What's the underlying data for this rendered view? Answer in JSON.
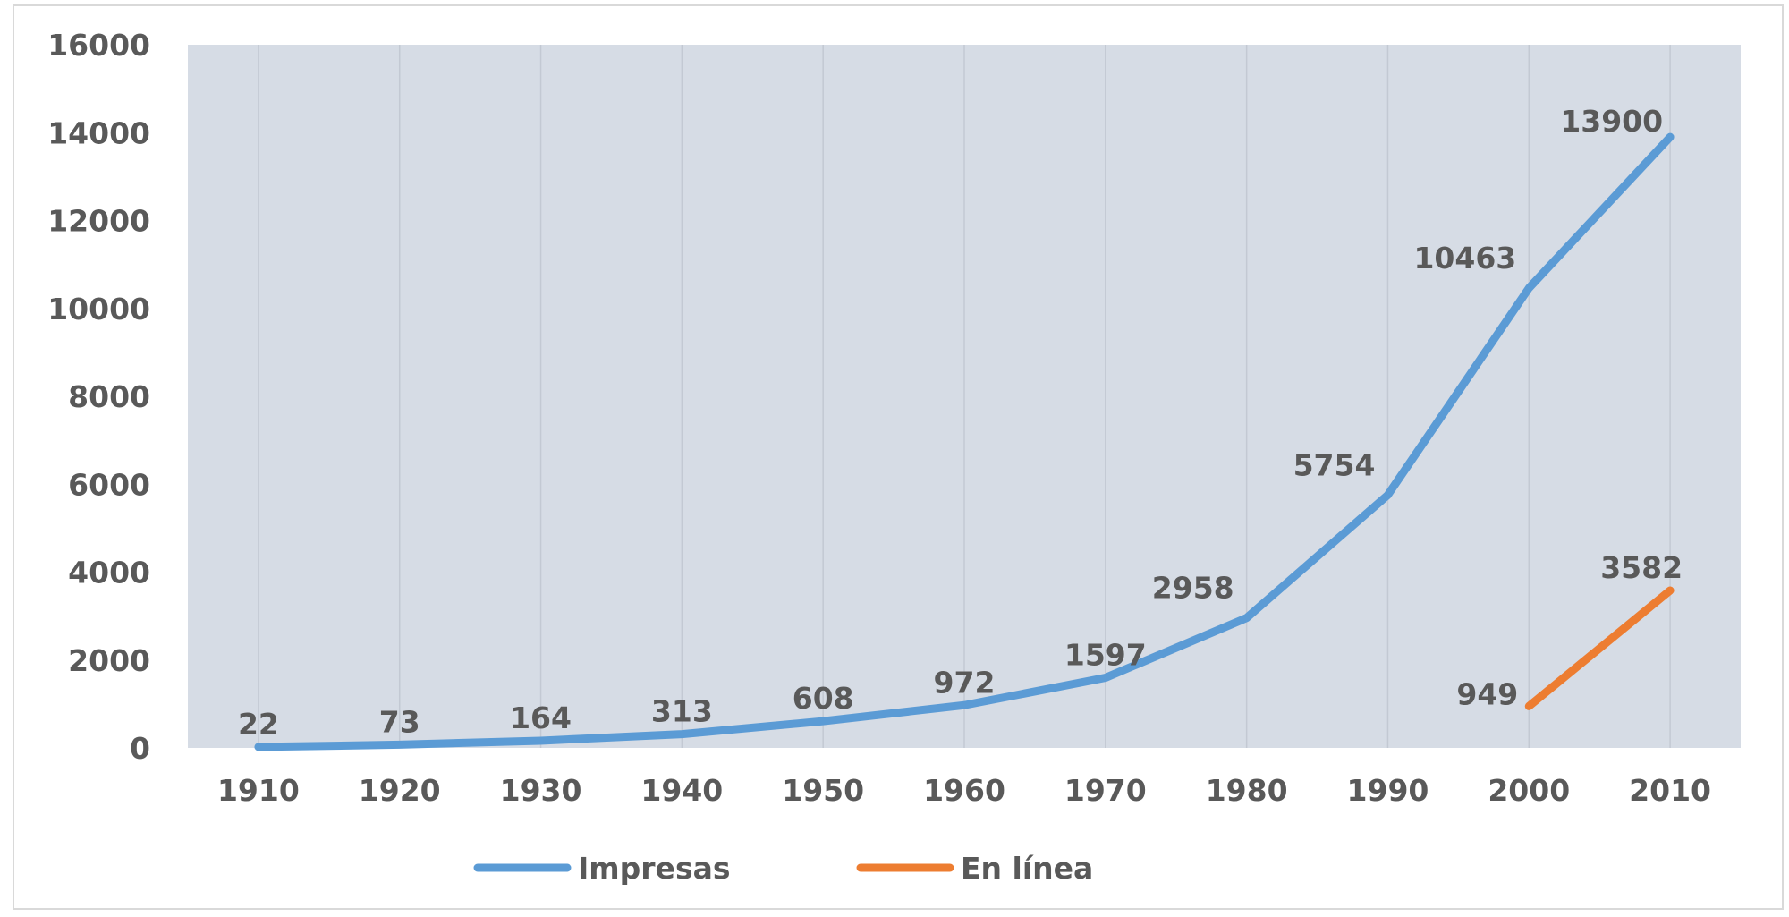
{
  "chart_data": {
    "type": "line",
    "title": "",
    "xlabel": "",
    "ylabel": "",
    "categories": [
      "1910",
      "1920",
      "1930",
      "1940",
      "1950",
      "1960",
      "1970",
      "1980",
      "1990",
      "2000",
      "2010"
    ],
    "ylim": [
      0,
      16000
    ],
    "yticks": [
      "0",
      "2000",
      "4000",
      "6000",
      "8000",
      "10000",
      "12000",
      "14000",
      "16000"
    ],
    "grid": "vertical",
    "legend_position": "bottom",
    "plot_background": "#d6dce5",
    "series": [
      {
        "name": "Impresas",
        "color": "#5b9bd5",
        "values": [
          22,
          73,
          164,
          313,
          608,
          972,
          1597,
          2958,
          5754,
          10463,
          13900
        ]
      },
      {
        "name": "En línea",
        "color": "#ed7d31",
        "values": [
          null,
          null,
          null,
          null,
          null,
          null,
          null,
          null,
          null,
          949,
          3582
        ]
      }
    ]
  }
}
